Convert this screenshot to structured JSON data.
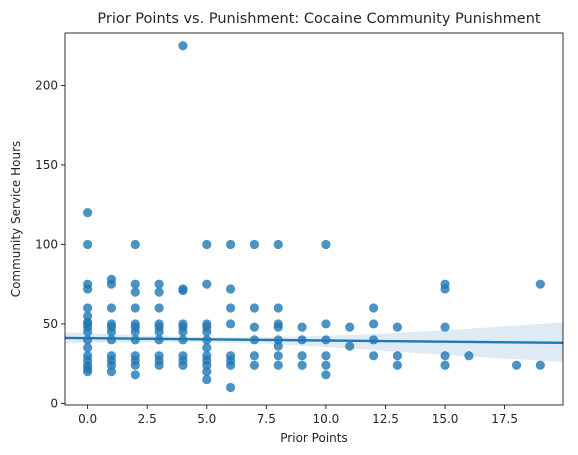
{
  "chart_data": {
    "type": "scatter",
    "title": "Prior Points vs. Punishment: Cocaine Community Punishment",
    "xlabel": "Prior Points",
    "ylabel": "Community Service Hours",
    "xlim": [
      -0.95,
      19.95
    ],
    "ylim": [
      -1,
      233
    ],
    "xticks": [
      0.0,
      2.5,
      5.0,
      7.5,
      10.0,
      12.5,
      15.0,
      17.5
    ],
    "xtick_labels": [
      "0.0",
      "2.5",
      "5.0",
      "7.5",
      "10.0",
      "12.5",
      "15.0",
      "17.5"
    ],
    "yticks": [
      0,
      50,
      100,
      150,
      200
    ],
    "ytick_labels": [
      "0",
      "50",
      "100",
      "150",
      "200"
    ],
    "grid": false,
    "point_color": "#1f77b4",
    "regression_line": {
      "x": [
        -0.95,
        19.95
      ],
      "y": [
        41.2,
        38.1
      ],
      "color": "#1f77b4"
    },
    "confidence_band": {
      "x": [
        -0.95,
        0,
        2.5,
        5,
        7.5,
        10,
        12.5,
        15,
        17.5,
        19.95
      ],
      "lower": [
        37.6,
        38.2,
        38.6,
        38.5,
        37.5,
        35.5,
        33.0,
        30.5,
        28.2,
        26.0
      ],
      "upper": [
        44.8,
        44.1,
        42.6,
        41.6,
        41.7,
        42.5,
        44.0,
        46.0,
        48.5,
        51.0
      ]
    },
    "points": [
      {
        "x": 0,
        "y": 120
      },
      {
        "x": 0,
        "y": 100
      },
      {
        "x": 0,
        "y": 75
      },
      {
        "x": 0,
        "y": 72
      },
      {
        "x": 0,
        "y": 60
      },
      {
        "x": 0,
        "y": 55
      },
      {
        "x": 0,
        "y": 51
      },
      {
        "x": 0,
        "y": 50
      },
      {
        "x": 0,
        "y": 48
      },
      {
        "x": 0,
        "y": 45
      },
      {
        "x": 0,
        "y": 40
      },
      {
        "x": 0,
        "y": 35
      },
      {
        "x": 0,
        "y": 30
      },
      {
        "x": 0,
        "y": 27
      },
      {
        "x": 0,
        "y": 24
      },
      {
        "x": 0,
        "y": 22
      },
      {
        "x": 0,
        "y": 20
      },
      {
        "x": 1,
        "y": 78
      },
      {
        "x": 1,
        "y": 75
      },
      {
        "x": 1,
        "y": 60
      },
      {
        "x": 1,
        "y": 50
      },
      {
        "x": 1,
        "y": 48
      },
      {
        "x": 1,
        "y": 45
      },
      {
        "x": 1,
        "y": 40
      },
      {
        "x": 1,
        "y": 30
      },
      {
        "x": 1,
        "y": 27
      },
      {
        "x": 1,
        "y": 24
      },
      {
        "x": 1,
        "y": 20
      },
      {
        "x": 2,
        "y": 100
      },
      {
        "x": 2,
        "y": 75
      },
      {
        "x": 2,
        "y": 70
      },
      {
        "x": 2,
        "y": 60
      },
      {
        "x": 2,
        "y": 50
      },
      {
        "x": 2,
        "y": 48
      },
      {
        "x": 2,
        "y": 45
      },
      {
        "x": 2,
        "y": 40
      },
      {
        "x": 2,
        "y": 30
      },
      {
        "x": 2,
        "y": 27
      },
      {
        "x": 2,
        "y": 24
      },
      {
        "x": 2,
        "y": 18
      },
      {
        "x": 3,
        "y": 75
      },
      {
        "x": 3,
        "y": 70
      },
      {
        "x": 3,
        "y": 60
      },
      {
        "x": 3,
        "y": 50
      },
      {
        "x": 3,
        "y": 48
      },
      {
        "x": 3,
        "y": 45
      },
      {
        "x": 3,
        "y": 40
      },
      {
        "x": 3,
        "y": 30
      },
      {
        "x": 3,
        "y": 27
      },
      {
        "x": 3,
        "y": 24
      },
      {
        "x": 4,
        "y": 225
      },
      {
        "x": 4,
        "y": 72
      },
      {
        "x": 4,
        "y": 71
      },
      {
        "x": 4,
        "y": 50
      },
      {
        "x": 4,
        "y": 48
      },
      {
        "x": 4,
        "y": 45
      },
      {
        "x": 4,
        "y": 40
      },
      {
        "x": 4,
        "y": 30
      },
      {
        "x": 4,
        "y": 27
      },
      {
        "x": 4,
        "y": 24
      },
      {
        "x": 5,
        "y": 100
      },
      {
        "x": 5,
        "y": 75
      },
      {
        "x": 5,
        "y": 50
      },
      {
        "x": 5,
        "y": 48
      },
      {
        "x": 5,
        "y": 45
      },
      {
        "x": 5,
        "y": 40
      },
      {
        "x": 5,
        "y": 35
      },
      {
        "x": 5,
        "y": 30
      },
      {
        "x": 5,
        "y": 27
      },
      {
        "x": 5,
        "y": 24
      },
      {
        "x": 5,
        "y": 20
      },
      {
        "x": 5,
        "y": 15
      },
      {
        "x": 6,
        "y": 100
      },
      {
        "x": 6,
        "y": 72
      },
      {
        "x": 6,
        "y": 60
      },
      {
        "x": 6,
        "y": 50
      },
      {
        "x": 6,
        "y": 30
      },
      {
        "x": 6,
        "y": 27
      },
      {
        "x": 6,
        "y": 24
      },
      {
        "x": 6,
        "y": 10
      },
      {
        "x": 7,
        "y": 100
      },
      {
        "x": 7,
        "y": 60
      },
      {
        "x": 7,
        "y": 48
      },
      {
        "x": 7,
        "y": 40
      },
      {
        "x": 7,
        "y": 30
      },
      {
        "x": 7,
        "y": 24
      },
      {
        "x": 8,
        "y": 100
      },
      {
        "x": 8,
        "y": 60
      },
      {
        "x": 8,
        "y": 50
      },
      {
        "x": 8,
        "y": 48
      },
      {
        "x": 8,
        "y": 40
      },
      {
        "x": 8,
        "y": 36
      },
      {
        "x": 8,
        "y": 30
      },
      {
        "x": 8,
        "y": 24
      },
      {
        "x": 9,
        "y": 48
      },
      {
        "x": 9,
        "y": 40
      },
      {
        "x": 9,
        "y": 30
      },
      {
        "x": 9,
        "y": 24
      },
      {
        "x": 10,
        "y": 100
      },
      {
        "x": 10,
        "y": 50
      },
      {
        "x": 10,
        "y": 40
      },
      {
        "x": 10,
        "y": 30
      },
      {
        "x": 10,
        "y": 24
      },
      {
        "x": 10,
        "y": 18
      },
      {
        "x": 11,
        "y": 48
      },
      {
        "x": 11,
        "y": 36
      },
      {
        "x": 12,
        "y": 60
      },
      {
        "x": 12,
        "y": 50
      },
      {
        "x": 12,
        "y": 40
      },
      {
        "x": 12,
        "y": 30
      },
      {
        "x": 13,
        "y": 48
      },
      {
        "x": 13,
        "y": 30
      },
      {
        "x": 13,
        "y": 24
      },
      {
        "x": 15,
        "y": 75
      },
      {
        "x": 15,
        "y": 72
      },
      {
        "x": 15,
        "y": 48
      },
      {
        "x": 15,
        "y": 30
      },
      {
        "x": 15,
        "y": 24
      },
      {
        "x": 16,
        "y": 30
      },
      {
        "x": 18,
        "y": 24
      },
      {
        "x": 19,
        "y": 75
      },
      {
        "x": 19,
        "y": 24
      }
    ]
  }
}
